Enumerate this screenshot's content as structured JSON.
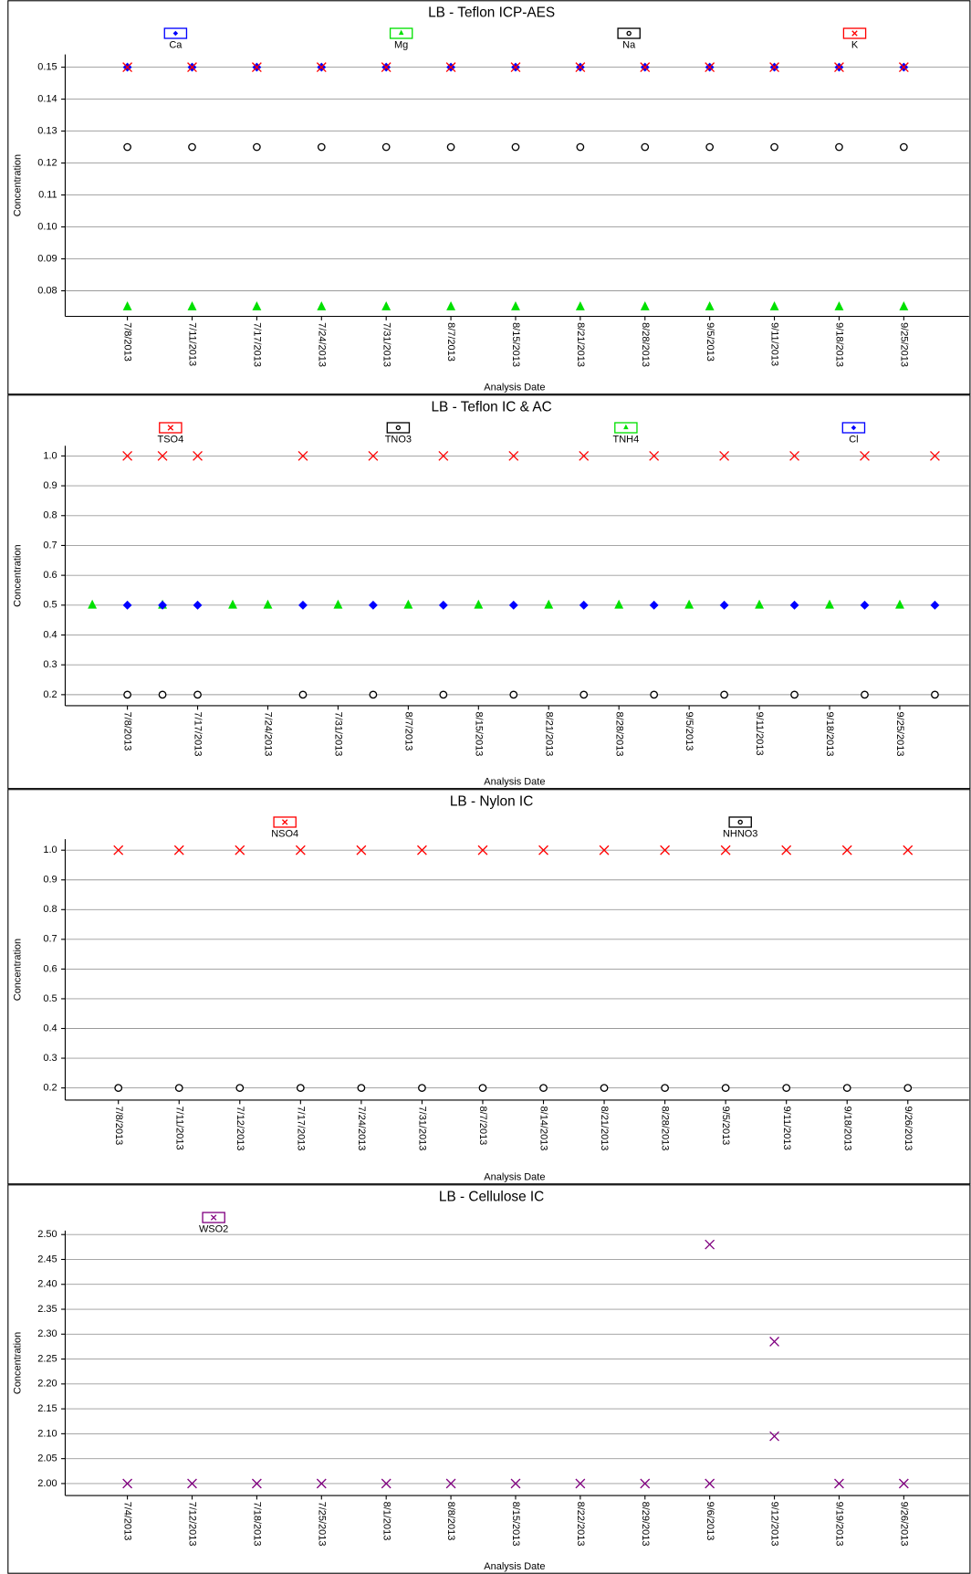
{
  "chart_data": [
    {
      "type": "scatter",
      "title": "LB - Teflon ICP-AES",
      "x_label": "Analysis Date",
      "y_label": "Concentration",
      "categories": [
        "7/8/2013",
        "7/11/2013",
        "7/17/2013",
        "7/24/2013",
        "7/31/2013",
        "8/7/2013",
        "8/15/2013",
        "8/21/2013",
        "8/28/2013",
        "9/5/2013",
        "9/11/2013",
        "9/18/2013",
        "9/25/2013"
      ],
      "ylim": [
        0.072,
        0.154
      ],
      "yticks": [
        0.08,
        0.09,
        {
          "value": 0.1,
          "label": "0.10"
        },
        0.11,
        0.12,
        0.13,
        0.14,
        0.15
      ],
      "grid": true,
      "series": [
        {
          "name": "Ca",
          "color": "#0000ff",
          "marker": "diamond",
          "values": [
            0.15,
            0.15,
            0.15,
            0.15,
            0.15,
            0.15,
            0.15,
            0.15,
            0.15,
            0.15,
            0.15,
            0.15,
            0.15
          ]
        },
        {
          "name": "Mg",
          "color": "#00e000",
          "marker": "triangle",
          "values": [
            0.075,
            0.075,
            0.075,
            0.075,
            0.075,
            0.075,
            0.075,
            0.075,
            0.075,
            0.075,
            0.075,
            0.075,
            0.075
          ]
        },
        {
          "name": "Na",
          "color": "#000000",
          "marker": "circle",
          "values": [
            0.125,
            0.125,
            0.125,
            0.125,
            0.125,
            0.125,
            0.125,
            0.125,
            0.125,
            0.125,
            0.125,
            0.125,
            0.125
          ]
        },
        {
          "name": "K",
          "color": "#ff0000",
          "marker": "x",
          "values": [
            0.15,
            0.15,
            0.15,
            0.15,
            0.15,
            0.15,
            0.15,
            0.15,
            0.15,
            0.15,
            0.15,
            0.15,
            0.15
          ]
        }
      ]
    },
    {
      "type": "scatter",
      "title": "LB - Teflon IC & AC",
      "x_label": "Analysis Date",
      "y_label": "Concentration",
      "categories": [
        null,
        "7/8/2013",
        null,
        "7/17/2013",
        null,
        "7/24/2013",
        null,
        "7/31/2013",
        null,
        "8/7/2013",
        null,
        "8/15/2013",
        null,
        "8/21/2013",
        null,
        "8/28/2013",
        null,
        "9/5/2013",
        null,
        "9/11/2013",
        null,
        "9/18/2013",
        null,
        "9/25/2013",
        null
      ],
      "ylim": [
        0.163,
        1.034
      ],
      "yticks": [
        0.2,
        0.3,
        0.4,
        0.5,
        0.6,
        0.7,
        0.8,
        0.9,
        {
          "value": 1,
          "label": "1.0"
        }
      ],
      "grid": true,
      "series": [
        {
          "name": "TSO4",
          "color": "#ff0000",
          "marker": "x",
          "values": [
            null,
            1,
            1,
            1,
            null,
            null,
            1,
            null,
            1,
            null,
            1,
            null,
            1,
            null,
            1,
            null,
            1,
            null,
            1,
            null,
            1,
            null,
            1,
            null,
            1
          ]
        },
        {
          "name": "TNO3",
          "color": "#000000",
          "marker": "circle",
          "values": [
            null,
            0.2,
            0.2,
            0.2,
            null,
            null,
            0.2,
            null,
            0.2,
            null,
            0.2,
            null,
            0.2,
            null,
            0.2,
            null,
            0.2,
            null,
            0.2,
            null,
            0.2,
            null,
            0.2,
            null,
            0.2
          ]
        },
        {
          "name": "TNH4",
          "color": "#00e000",
          "marker": "triangle",
          "values": [
            0.5,
            null,
            0.5,
            null,
            0.5,
            0.5,
            null,
            0.5,
            null,
            0.5,
            null,
            0.5,
            null,
            0.5,
            null,
            0.5,
            null,
            0.5,
            null,
            0.5,
            null,
            0.5,
            null,
            0.5,
            null
          ]
        },
        {
          "name": "Cl",
          "color": "#0000ff",
          "marker": "diamond",
          "values": [
            null,
            0.5,
            0.5,
            0.5,
            null,
            null,
            0.5,
            null,
            0.5,
            null,
            0.5,
            null,
            0.5,
            null,
            0.5,
            null,
            0.5,
            null,
            0.5,
            null,
            0.5,
            null,
            0.5,
            null,
            0.5
          ]
        }
      ]
    },
    {
      "type": "scatter",
      "title": "LB - Nylon IC",
      "x_label": "Analysis Date",
      "y_label": "Concentration",
      "categories": [
        "7/8/2013",
        "7/11/2013",
        "7/12/2013",
        "7/17/2013",
        "7/24/2013",
        "7/31/2013",
        "8/7/2013",
        "8/14/2013",
        "8/21/2013",
        "8/28/2013",
        "9/5/2013",
        "9/11/2013",
        "9/18/2013",
        "9/26/2013"
      ],
      "ylim": [
        0.159,
        1.037
      ],
      "yticks": [
        0.2,
        0.3,
        0.4,
        0.5,
        0.6,
        0.7,
        0.8,
        0.9,
        {
          "value": 1,
          "label": "1.0"
        }
      ],
      "grid": true,
      "series": [
        {
          "name": "NSO4",
          "color": "#ff0000",
          "marker": "x",
          "values": [
            1,
            1,
            1,
            1,
            1,
            1,
            1,
            1,
            1,
            1,
            1,
            1,
            1,
            1
          ]
        },
        {
          "name": "NHNO3",
          "color": "#000000",
          "marker": "circle",
          "values": [
            0.2,
            0.2,
            0.2,
            0.2,
            0.2,
            0.2,
            0.2,
            0.2,
            0.2,
            0.2,
            0.2,
            0.2,
            0.2,
            0.2
          ]
        }
      ]
    },
    {
      "type": "scatter",
      "title": "LB - Cellulose IC",
      "x_label": "Analysis Date",
      "y_label": "Concentration",
      "categories": [
        "7/4/2013",
        "7/12/2013",
        "7/18/2013",
        "7/25/2013",
        "8/1/2013",
        "8/8/2013",
        "8/15/2013",
        "8/22/2013",
        "8/29/2013",
        "9/6/2013",
        "9/12/2013",
        "9/19/2013",
        "9/26/2013"
      ],
      "ylim": [
        1.976,
        2.508
      ],
      "yticks": [
        {
          "value": 2,
          "label": "2.00"
        },
        2.05,
        {
          "value": 2.1,
          "label": "2.10"
        },
        2.15,
        {
          "value": 2.2,
          "label": "2.20"
        },
        2.25,
        {
          "value": 2.3,
          "label": "2.30"
        },
        2.35,
        {
          "value": 2.4,
          "label": "2.40"
        },
        2.45,
        {
          "value": 2.5,
          "label": "2.50"
        }
      ],
      "grid": true,
      "series": [
        {
          "name": "WSO2",
          "color": "#800080",
          "marker": "x",
          "values": [
            [
              2
            ],
            [
              2
            ],
            [
              2
            ],
            [
              2
            ],
            [
              2
            ],
            [
              2
            ],
            [
              2
            ],
            [
              2
            ],
            [
              2
            ],
            [
              2,
              2.48
            ],
            [
              2.285,
              2.095
            ],
            [
              2
            ],
            [
              2
            ]
          ]
        }
      ]
    }
  ]
}
